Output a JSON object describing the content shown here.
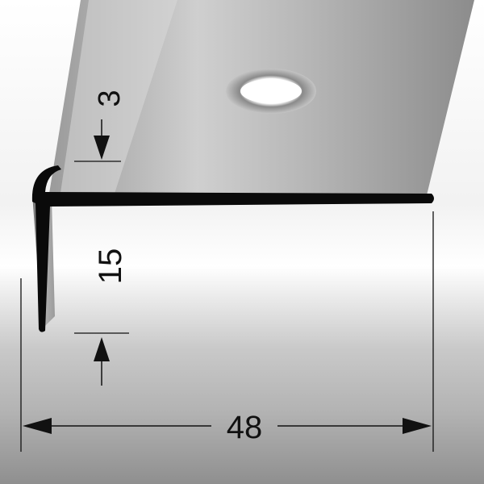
{
  "drawing": {
    "dimensions": {
      "thickness": "3",
      "height": "15",
      "width": "48"
    },
    "colors": {
      "profile_dark": "#0a0a0a",
      "metal_light": "#d6d6d6",
      "metal_mid": "#a9a9a9",
      "metal_dark": "#7a7a7a",
      "background_light": "#ffffff",
      "background_gray": "#b8b8b8",
      "hole_fill": "#ffffff",
      "dimension_line": "#111111"
    }
  }
}
